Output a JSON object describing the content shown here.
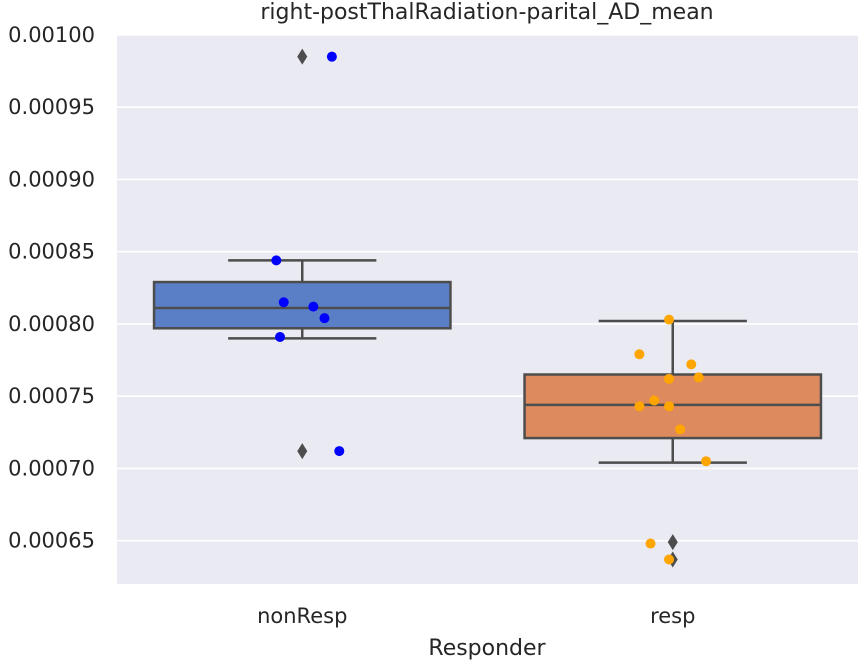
{
  "chart_data": {
    "type": "box",
    "title": "right-postThalRadiation-parital_AD_mean",
    "xlabel": "Responder",
    "ylabel": "",
    "ylim": [
      0.00062,
      0.001
    ],
    "yticks": [
      "0.00100",
      "0.00095",
      "0.00090",
      "0.00085",
      "0.00080",
      "0.00075",
      "0.00070",
      "0.00065"
    ],
    "ytick_values": [
      0.001,
      0.00095,
      0.0009,
      0.00085,
      0.0008,
      0.00075,
      0.0007,
      0.00065
    ],
    "grid": true,
    "categories": [
      "nonResp",
      "resp"
    ],
    "boxes": [
      {
        "category": "nonResp",
        "color": "#5a7fc7",
        "whisker_low": 0.00079,
        "q1": 0.000797,
        "median": 0.000811,
        "q3": 0.000829,
        "whisker_high": 0.000844,
        "outliers": [
          0.000985,
          0.000712
        ]
      },
      {
        "category": "resp",
        "color": "#dd8a5e",
        "whisker_low": 0.000704,
        "q1": 0.000721,
        "median": 0.000744,
        "q3": 0.000765,
        "whisker_high": 0.000802,
        "outliers": [
          0.000649,
          0.000637
        ]
      }
    ],
    "points": [
      {
        "category": "nonResp",
        "color": "#0000ff",
        "values": [
          0.000985,
          0.000844,
          0.000815,
          0.000812,
          0.000804,
          0.000791,
          0.000712
        ],
        "jitter": [
          0.08,
          -0.07,
          -0.05,
          0.03,
          0.06,
          -0.06,
          0.1
        ]
      },
      {
        "category": "resp",
        "color": "#ffa500",
        "values": [
          0.000803,
          0.000779,
          0.000772,
          0.000763,
          0.000762,
          0.000747,
          0.000743,
          0.000743,
          0.000727,
          0.000705,
          0.000648,
          0.000637
        ],
        "jitter": [
          -0.01,
          -0.09,
          0.05,
          0.07,
          -0.01,
          -0.05,
          -0.09,
          -0.01,
          0.02,
          0.09,
          -0.06,
          -0.01
        ]
      }
    ]
  }
}
